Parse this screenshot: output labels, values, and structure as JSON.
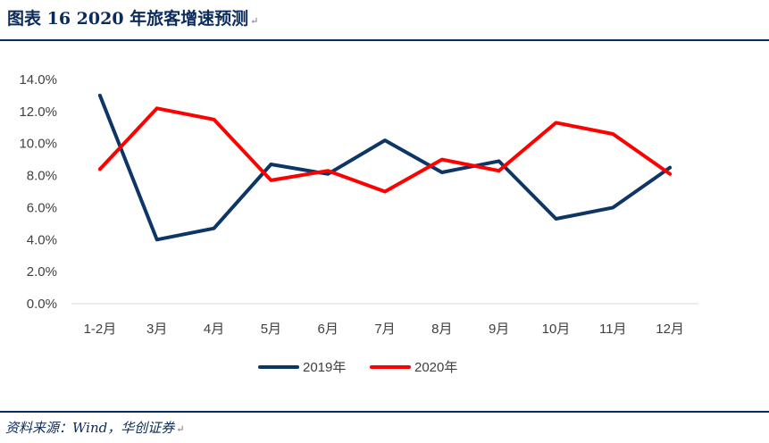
{
  "header": {
    "title": "图表 16 2020 年旅客增速预测",
    "mark": "↵"
  },
  "footer": {
    "source": "资料来源：Wind，华创证券",
    "mark": "↵"
  },
  "chart_data": {
    "type": "line",
    "title": "",
    "xlabel": "",
    "ylabel": "",
    "categories": [
      "1-2月",
      "3月",
      "4月",
      "5月",
      "6月",
      "7月",
      "8月",
      "9月",
      "10月",
      "11月",
      "12月"
    ],
    "series": [
      {
        "name": "2019年",
        "color": "#0d3566",
        "values": [
          13.0,
          4.0,
          4.7,
          8.7,
          8.1,
          10.2,
          8.2,
          8.9,
          5.3,
          6.0,
          8.5
        ]
      },
      {
        "name": "2020年",
        "color": "#ff0000",
        "values": [
          8.4,
          12.2,
          11.5,
          7.7,
          8.3,
          7.0,
          9.0,
          8.3,
          11.3,
          10.6,
          8.1
        ]
      }
    ],
    "ylim": [
      0,
      14
    ],
    "yticks": [
      0,
      2,
      4,
      6,
      8,
      10,
      12,
      14
    ],
    "ytick_labels": [
      "0.0%",
      "2.0%",
      "4.0%",
      "6.0%",
      "8.0%",
      "10.0%",
      "12.0%",
      "14.0%"
    ],
    "grid": false,
    "legend": "bottom"
  }
}
